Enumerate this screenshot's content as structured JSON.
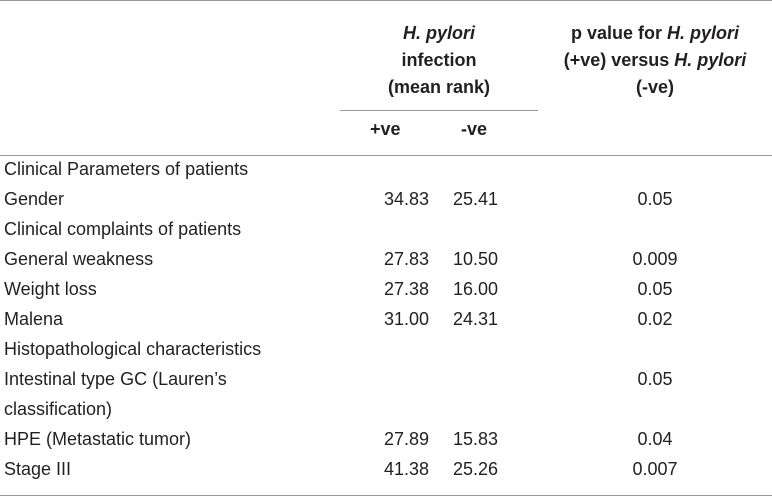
{
  "header": {
    "hp_line1": "H. pylori",
    "hp_line2": "infection",
    "hp_line3": "(mean rank)",
    "p_line1_pre": "p value for ",
    "p_line1_italic": "H. pylori",
    "p_line2_pre": "(+ve) versus ",
    "p_line2_italic": "H. pylori",
    "p_line3": "(-ve)",
    "sub_pos": "+ve",
    "sub_neg": "-ve"
  },
  "rows": [
    {
      "label": "Clinical Parameters of patients",
      "pos": "",
      "neg": "",
      "p": ""
    },
    {
      "label": "Gender",
      "pos": "34.83",
      "neg": "25.41",
      "p": "0.05"
    },
    {
      "label": "Clinical complaints of patients",
      "pos": "",
      "neg": "",
      "p": ""
    },
    {
      "label": "General weakness",
      "pos": "27.83",
      "neg": "10.50",
      "p": "0.009"
    },
    {
      "label": "Weight loss",
      "pos": "27.38",
      "neg": "16.00",
      "p": "0.05"
    },
    {
      "label": "Malena",
      "pos": "31.00",
      "neg": "24.31",
      "p": "0.02"
    },
    {
      "label": "Histopathological characteristics",
      "pos": "",
      "neg": "",
      "p": ""
    },
    {
      "label": "Intestinal type GC (Lauren’s classification)",
      "pos": "",
      "neg": "",
      "p": "0.05"
    },
    {
      "label": "HPE (Metastatic tumor)",
      "pos": "27.89",
      "neg": "15.83",
      "p": "0.04"
    },
    {
      "label": "Stage III",
      "pos": "41.38",
      "neg": "25.26",
      "p": "0.007"
    }
  ]
}
